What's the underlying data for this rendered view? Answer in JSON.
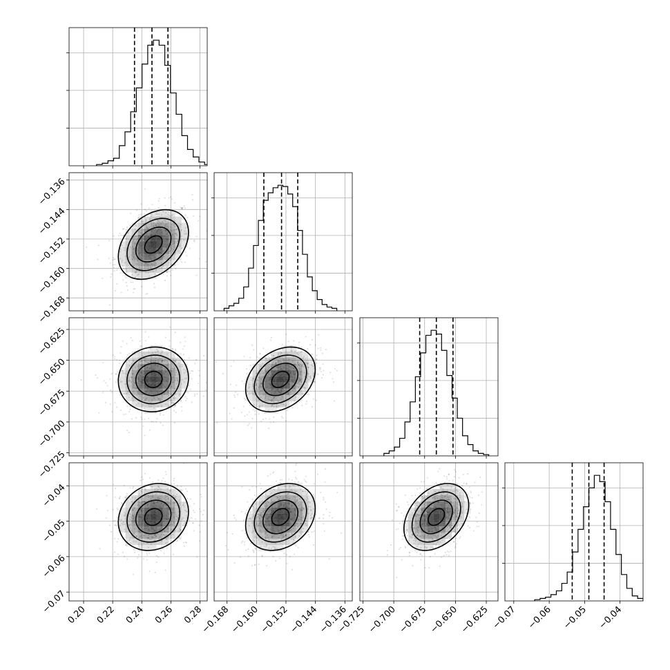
{
  "chart_data": {
    "type": "corner",
    "title": "",
    "parameters": [
      {
        "range": [
          0.19,
          0.285
        ],
        "ticks": [
          0.2,
          0.22,
          0.24,
          0.26,
          0.28
        ],
        "tick_labels": [
          "0.20",
          "0.22",
          "0.24",
          "0.26",
          "0.28"
        ],
        "mean": 0.248,
        "sd": 0.0115,
        "quantiles": [
          0.235,
          0.247,
          0.258
        ],
        "hist": [
          0.01,
          0.02,
          0.04,
          0.06,
          0.16,
          0.27,
          0.43,
          0.62,
          0.81,
          0.96,
          1.0,
          0.96,
          0.8,
          0.58,
          0.41,
          0.24,
          0.13,
          0.07,
          0.03,
          0.01
        ]
      },
      {
        "range": [
          -0.1715,
          -0.134
        ],
        "ticks": [
          -0.168,
          -0.16,
          -0.152,
          -0.144,
          -0.136
        ],
        "tick_labels": [
          "−0.168",
          "−0.160",
          "−0.152",
          "−0.144",
          "−0.136"
        ],
        "mean": -0.1535,
        "sd": 0.0045,
        "quantiles": [
          -0.158,
          -0.1532,
          -0.1488
        ],
        "hist": [
          0.02,
          0.04,
          0.06,
          0.1,
          0.19,
          0.34,
          0.52,
          0.72,
          0.88,
          0.94,
          0.98,
          1.0,
          0.99,
          0.93,
          0.83,
          0.64,
          0.45,
          0.27,
          0.16,
          0.09,
          0.05,
          0.03,
          0.02
        ]
      },
      {
        "range": [
          -0.7275,
          -0.6155
        ],
        "ticks": [
          -0.725,
          -0.7,
          -0.675,
          -0.65,
          -0.625
        ],
        "tick_labels": [
          "−0.725",
          "−0.700",
          "−0.675",
          "−0.650",
          "−0.625"
        ],
        "mean": -0.6655,
        "sd": 0.0125,
        "quantiles": [
          -0.679,
          -0.6655,
          -0.652
        ],
        "hist": [
          0.02,
          0.04,
          0.07,
          0.14,
          0.27,
          0.43,
          0.63,
          0.82,
          0.96,
          1.0,
          0.97,
          0.84,
          0.64,
          0.46,
          0.3,
          0.16,
          0.09,
          0.04,
          0.02,
          0.01
        ]
      },
      {
        "range": [
          -0.0725,
          -0.0335
        ],
        "ticks": [
          -0.07,
          -0.06,
          -0.05,
          -0.04
        ],
        "tick_labels": [
          "−0.07",
          "−0.06",
          "−0.05",
          "−0.04"
        ],
        "mean": -0.0488,
        "sd": 0.0045,
        "quantiles": [
          -0.0535,
          -0.0488,
          -0.0445
        ],
        "hist": [
          0.01,
          0.02,
          0.03,
          0.05,
          0.08,
          0.14,
          0.23,
          0.39,
          0.57,
          0.75,
          0.9,
          1.0,
          0.95,
          0.79,
          0.57,
          0.37,
          0.21,
          0.1,
          0.04,
          0.02
        ]
      }
    ],
    "correlations": [
      [
        1.0,
        0.35,
        0.05,
        0.15
      ],
      [
        0.35,
        1.0,
        0.3,
        0.25
      ],
      [
        0.05,
        0.3,
        1.0,
        0.35
      ],
      [
        0.15,
        0.25,
        0.35,
        1.0
      ]
    ],
    "contour_levels_sigma": [
      0.5,
      1.0,
      1.5,
      2.0
    ],
    "colors": {
      "line": "#000000",
      "grid": "#b0b0b0",
      "density": "#000000"
    },
    "grid": true
  }
}
